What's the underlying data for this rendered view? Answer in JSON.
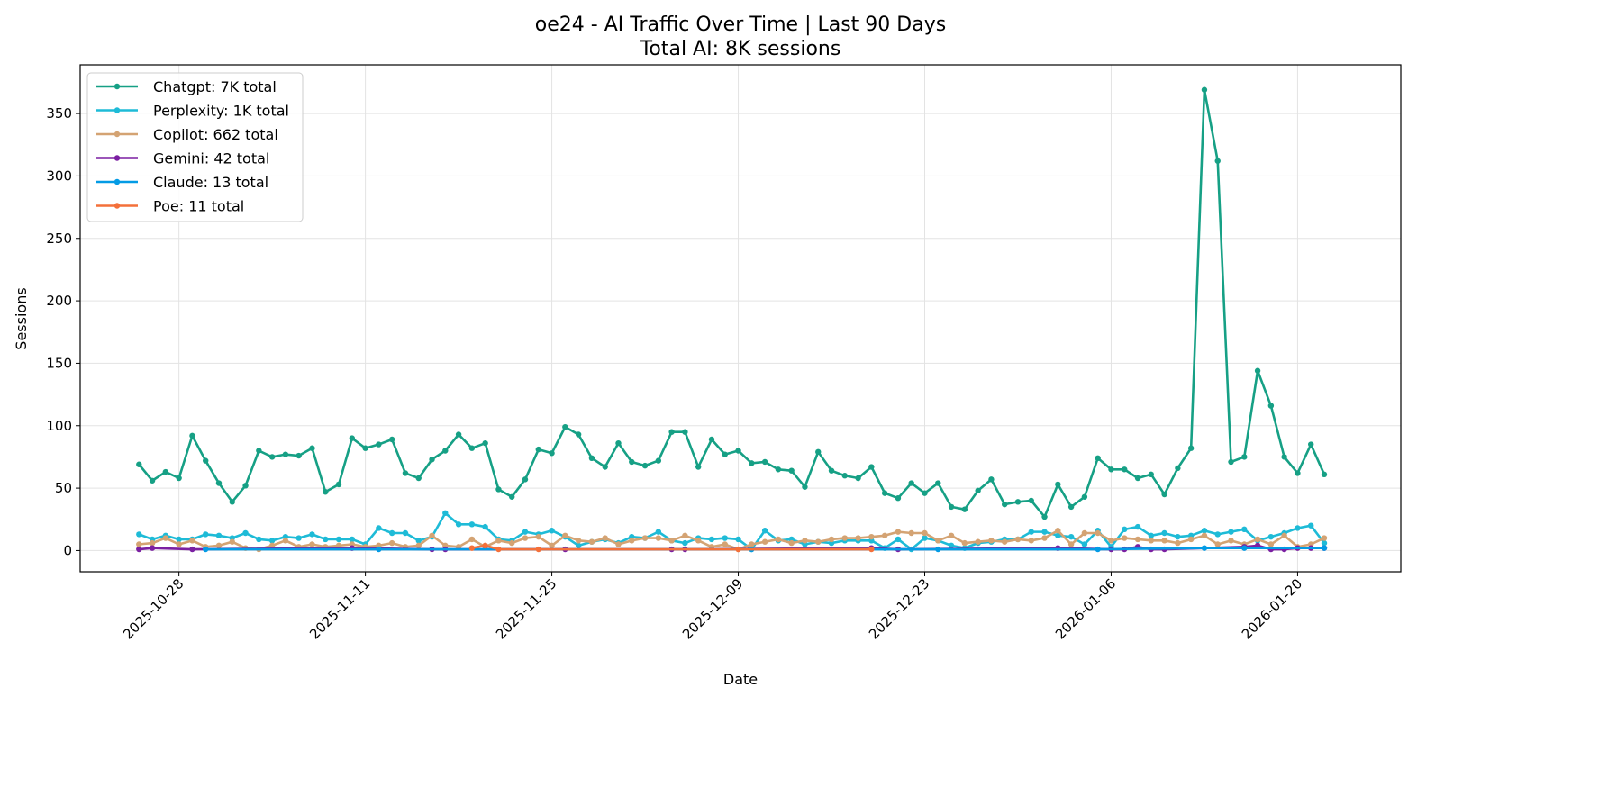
{
  "chart_data": {
    "type": "line",
    "title": "oe24 - AI Traffic Over Time | Last 90 Days",
    "subtitle": "Total AI: 8K sessions",
    "xlabel": "Date",
    "ylabel": "Sessions",
    "ylim": [
      -17,
      389
    ],
    "xlim": [
      "2025-10-20T14:00",
      "2026-01-27T18:00"
    ],
    "yticks": [
      0,
      50,
      100,
      150,
      200,
      250,
      300,
      350
    ],
    "xticks": [
      "2025-10-28",
      "2025-11-11",
      "2025-11-25",
      "2025-12-09",
      "2025-12-23",
      "2026-01-06",
      "2026-01-20"
    ],
    "grid": true,
    "legend_position": "top-left",
    "start_date": "2025-10-25",
    "series": [
      {
        "name": "Chatgpt: 7K total",
        "color": "#16a085",
        "values": [
          69,
          56,
          63,
          58,
          92,
          72,
          54,
          39,
          52,
          80,
          75,
          77,
          76,
          82,
          47,
          53,
          90,
          82,
          85,
          89,
          62,
          58,
          73,
          80,
          93,
          82,
          86,
          49,
          43,
          57,
          81,
          78,
          99,
          93,
          74,
          67,
          86,
          71,
          68,
          72,
          95,
          95,
          67,
          89,
          77,
          80,
          70,
          71,
          65,
          64,
          51,
          79,
          64,
          60,
          58,
          67,
          46,
          42,
          54,
          46,
          54,
          35,
          33,
          48,
          57,
          37,
          39,
          40,
          27,
          53,
          35,
          43,
          74,
          65,
          65,
          58,
          61,
          45,
          66,
          82,
          369,
          312,
          71,
          75,
          144,
          116,
          75,
          62,
          85,
          61
        ]
      },
      {
        "name": "Perplexity: 1K total",
        "color": "#1ebbd7",
        "values": [
          13,
          9,
          12,
          9,
          9,
          13,
          12,
          10,
          14,
          9,
          8,
          11,
          10,
          13,
          9,
          9,
          9,
          5,
          18,
          14,
          14,
          8,
          11,
          30,
          21,
          21,
          19,
          9,
          8,
          15,
          13,
          16,
          11,
          4,
          7,
          9,
          6,
          11,
          10,
          15,
          8,
          6,
          10,
          9,
          10,
          9,
          1,
          16,
          8,
          9,
          5,
          7,
          6,
          8,
          8,
          8,
          2,
          9,
          1,
          10,
          8,
          4,
          2,
          6,
          7,
          9,
          9,
          15,
          15,
          12,
          11,
          5,
          16,
          3,
          17,
          19,
          12,
          14,
          11,
          12,
          16,
          13,
          15,
          17,
          8,
          11,
          14,
          18,
          20,
          6
        ]
      },
      {
        "name": "Copilot: 662 total",
        "color": "#d4a373",
        "values": [
          5,
          6,
          10,
          5,
          8,
          3,
          4,
          7,
          2,
          1,
          4,
          8,
          3,
          5,
          3,
          4,
          5,
          3,
          4,
          6,
          3,
          4,
          12,
          4,
          3,
          9,
          3,
          8,
          6,
          10,
          11,
          4,
          12,
          8,
          7,
          10,
          5,
          8,
          10,
          10,
          8,
          12,
          8,
          3,
          5,
          1,
          5,
          7,
          9,
          6,
          8,
          7,
          9,
          10,
          10,
          11,
          12,
          15,
          14,
          14,
          8,
          12,
          6,
          7,
          8,
          7,
          9,
          8,
          10,
          16,
          5,
          14,
          14,
          8,
          10,
          9,
          8,
          8,
          6,
          9,
          12,
          5,
          8,
          5,
          9,
          5,
          12,
          3,
          5,
          10
        ]
      },
      {
        "name": "Gemini: 42 total",
        "color": "#7b1fa2",
        "values": [
          1,
          2,
          null,
          null,
          1,
          null,
          null,
          null,
          null,
          null,
          null,
          null,
          null,
          null,
          null,
          null,
          2,
          null,
          null,
          null,
          null,
          null,
          1,
          1,
          null,
          null,
          null,
          null,
          null,
          null,
          null,
          null,
          1,
          null,
          null,
          null,
          null,
          null,
          null,
          null,
          1,
          1,
          null,
          null,
          null,
          null,
          null,
          null,
          null,
          null,
          null,
          null,
          null,
          null,
          null,
          2,
          null,
          1,
          null,
          null,
          null,
          null,
          null,
          null,
          null,
          null,
          null,
          null,
          null,
          2,
          null,
          null,
          null,
          1,
          1,
          3,
          1,
          1,
          null,
          null,
          null,
          null,
          null,
          3,
          4,
          1,
          1,
          2,
          2,
          2
        ]
      },
      {
        "name": "Claude: 13 total",
        "color": "#039be5",
        "values": [
          null,
          null,
          null,
          null,
          null,
          1,
          null,
          null,
          null,
          null,
          null,
          null,
          null,
          null,
          null,
          null,
          null,
          null,
          1,
          null,
          null,
          null,
          null,
          null,
          null,
          null,
          null,
          null,
          null,
          null,
          null,
          null,
          null,
          null,
          null,
          null,
          null,
          null,
          null,
          null,
          null,
          null,
          null,
          null,
          null,
          null,
          1,
          null,
          null,
          null,
          null,
          null,
          null,
          null,
          null,
          null,
          null,
          null,
          null,
          null,
          1,
          null,
          null,
          null,
          null,
          null,
          null,
          null,
          null,
          null,
          null,
          null,
          1,
          null,
          null,
          null,
          null,
          null,
          null,
          null,
          2,
          null,
          null,
          2,
          null,
          null,
          null,
          null,
          null,
          2
        ]
      },
      {
        "name": "Poe: 11 total",
        "color": "#f4703a",
        "values": [
          null,
          null,
          null,
          null,
          null,
          null,
          null,
          null,
          null,
          null,
          null,
          null,
          null,
          null,
          null,
          null,
          null,
          null,
          null,
          null,
          null,
          null,
          null,
          null,
          null,
          2,
          4,
          1,
          null,
          null,
          1,
          null,
          null,
          null,
          null,
          null,
          null,
          null,
          null,
          null,
          null,
          null,
          null,
          null,
          null,
          1,
          null,
          null,
          null,
          null,
          null,
          null,
          null,
          null,
          null,
          1,
          null,
          null,
          null,
          null,
          null,
          null,
          null,
          null,
          null,
          null,
          null,
          null,
          null,
          null,
          null,
          null,
          null,
          null,
          null,
          null,
          null,
          null,
          null,
          null,
          null,
          null,
          null,
          null,
          null,
          null,
          null,
          null,
          null,
          null
        ]
      }
    ]
  }
}
